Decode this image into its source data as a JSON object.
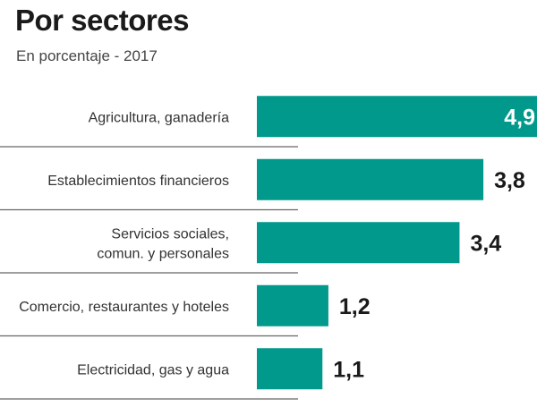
{
  "chart_data": {
    "type": "bar",
    "orientation": "horizontal",
    "title": "Por sectores",
    "subtitle": "En porcentaje - 2017",
    "categories": [
      [
        "Agricultura, ganadería"
      ],
      [
        "Establecimientos financieros"
      ],
      [
        "Servicios sociales,",
        "comun. y personales"
      ],
      [
        "Comercio, restaurantes y hoteles"
      ],
      [
        "Electricidad, gas y agua"
      ]
    ],
    "values": [
      4.9,
      3.8,
      3.4,
      1.2,
      1.1
    ],
    "value_labels": [
      "4,9",
      "3,8",
      "3,4",
      "1,2",
      "1,1"
    ],
    "xlabel": "",
    "ylabel": "",
    "xlim": [
      0,
      4.9
    ],
    "grid": false,
    "bar_color": "#00998c"
  }
}
